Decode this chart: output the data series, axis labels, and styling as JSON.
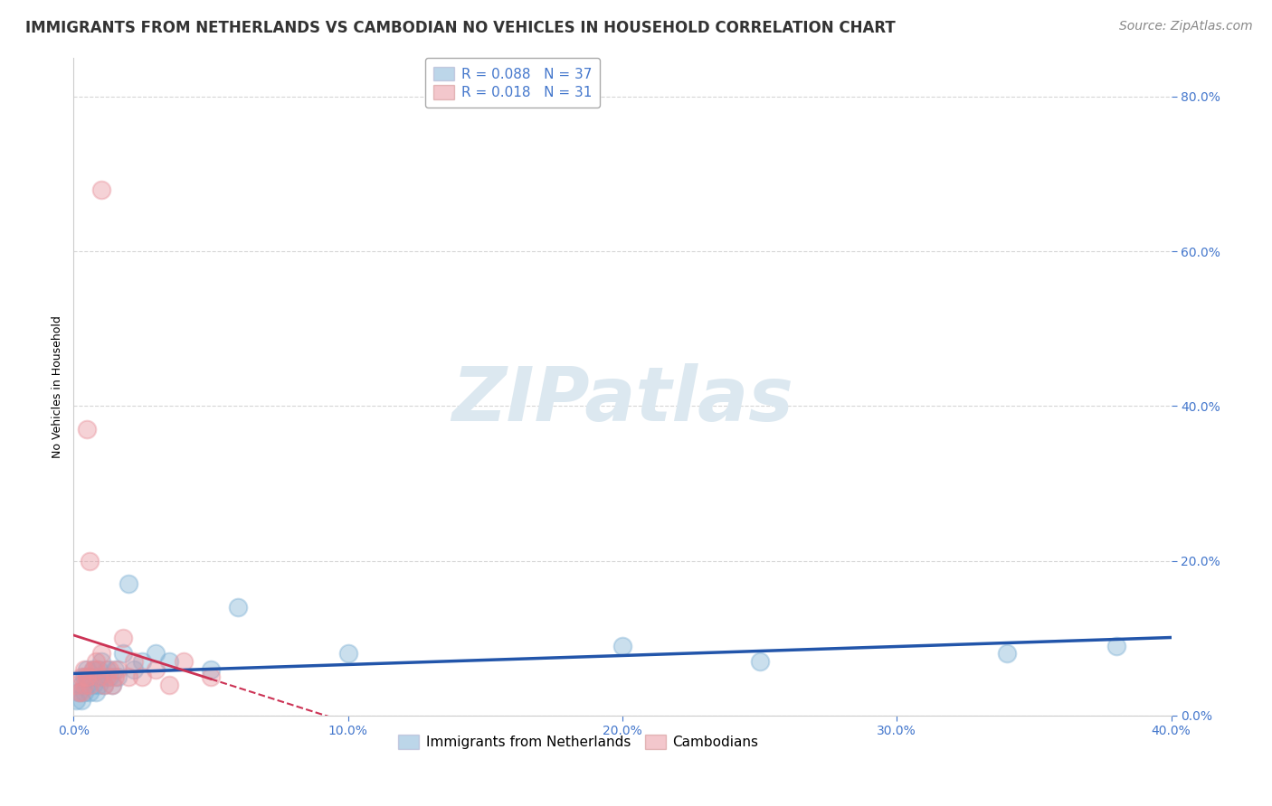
{
  "title": "IMMIGRANTS FROM NETHERLANDS VS CAMBODIAN NO VEHICLES IN HOUSEHOLD CORRELATION CHART",
  "source": "Source: ZipAtlas.com",
  "xlim": [
    0.0,
    0.4
  ],
  "ylim": [
    0.0,
    0.85
  ],
  "series1_name": "Immigrants from Netherlands",
  "series1_color": "#7bafd4",
  "series1_R": "0.088",
  "series1_N": "37",
  "series2_name": "Cambodians",
  "series2_color": "#e8909a",
  "series2_R": "0.018",
  "series2_N": "31",
  "series1_x": [
    0.001,
    0.002,
    0.003,
    0.003,
    0.004,
    0.004,
    0.005,
    0.005,
    0.006,
    0.006,
    0.007,
    0.007,
    0.008,
    0.008,
    0.009,
    0.009,
    0.01,
    0.01,
    0.011,
    0.012,
    0.013,
    0.014,
    0.015,
    0.016,
    0.018,
    0.02,
    0.022,
    0.025,
    0.03,
    0.035,
    0.05,
    0.06,
    0.1,
    0.2,
    0.25,
    0.34,
    0.38
  ],
  "series1_y": [
    0.02,
    0.03,
    0.04,
    0.02,
    0.05,
    0.03,
    0.06,
    0.04,
    0.05,
    0.03,
    0.04,
    0.06,
    0.05,
    0.03,
    0.06,
    0.04,
    0.07,
    0.05,
    0.04,
    0.06,
    0.05,
    0.04,
    0.06,
    0.05,
    0.08,
    0.17,
    0.06,
    0.07,
    0.08,
    0.07,
    0.06,
    0.14,
    0.08,
    0.09,
    0.07,
    0.08,
    0.09
  ],
  "series2_x": [
    0.001,
    0.002,
    0.003,
    0.003,
    0.004,
    0.004,
    0.005,
    0.005,
    0.006,
    0.007,
    0.008,
    0.009,
    0.01,
    0.011,
    0.012,
    0.013,
    0.014,
    0.015,
    0.016,
    0.018,
    0.02,
    0.022,
    0.025,
    0.03,
    0.035,
    0.04,
    0.05,
    0.01,
    0.008,
    0.006,
    0.005
  ],
  "series2_y": [
    0.04,
    0.03,
    0.05,
    0.03,
    0.04,
    0.06,
    0.05,
    0.37,
    0.2,
    0.06,
    0.07,
    0.05,
    0.68,
    0.04,
    0.05,
    0.06,
    0.04,
    0.05,
    0.06,
    0.1,
    0.05,
    0.07,
    0.05,
    0.06,
    0.04,
    0.07,
    0.05,
    0.08,
    0.06,
    0.04,
    0.05
  ],
  "background_color": "#ffffff",
  "grid_color": "#cccccc",
  "title_fontsize": 12,
  "axis_label_fontsize": 9,
  "tick_fontsize": 10,
  "legend_fontsize": 11,
  "source_fontsize": 10,
  "watermark_text": "ZIPatlas",
  "watermark_color": "#dce8f0",
  "watermark_fontsize": 60
}
